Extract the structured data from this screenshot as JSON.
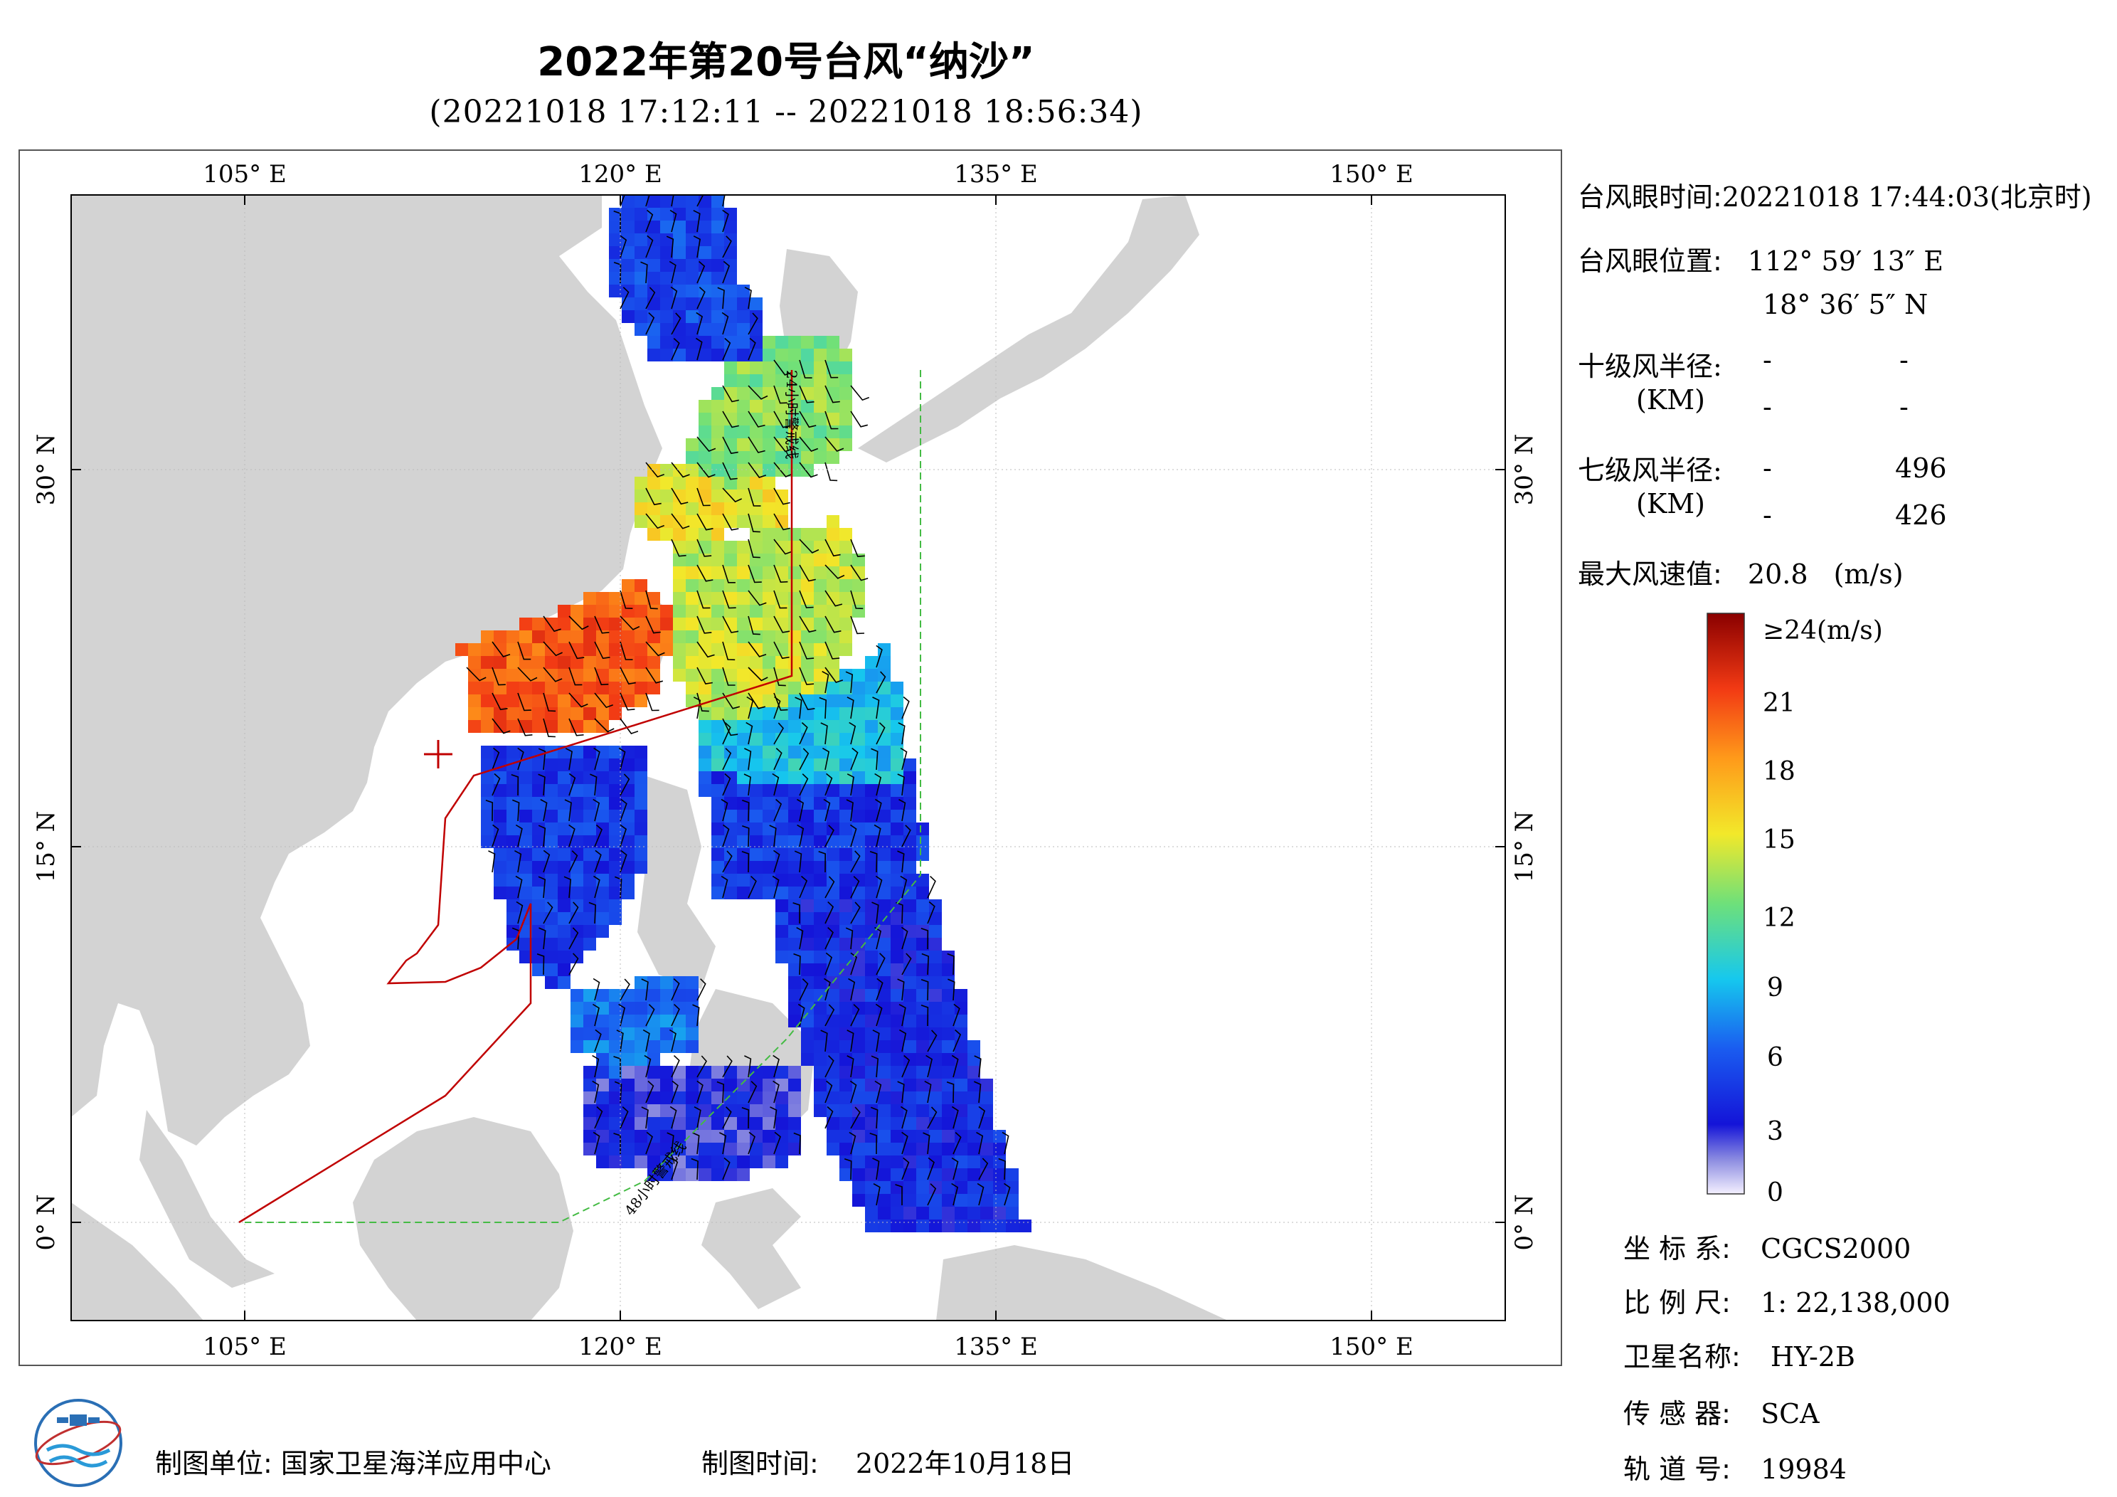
{
  "header": {
    "title": "2022年第20号台风“纳沙”",
    "time_range": "(20221018 17:12:11 -- 20221018 18:56:34)"
  },
  "map": {
    "lon_ticks": [
      "105° E",
      "120° E",
      "135° E",
      "150° E"
    ],
    "lat_ticks": [
      "30° N",
      "15° N",
      "0° N"
    ],
    "track_label_24h": "24小时警戒线",
    "track_label_48h": "48小时警戒线",
    "colors": {
      "land": "#d3d3d3",
      "sea": "#ffffff",
      "warning_line": "#c00000",
      "line_48h": "#33aa33"
    }
  },
  "info": {
    "eye_time_label": "台风眼时间:",
    "eye_time_value": "20221018 17:44:03(北京时)",
    "eye_pos_label": "台风眼位置:",
    "eye_lon": "112° 59′ 13″ E",
    "eye_lat": "18° 36′ 5″ N",
    "r10_label": "十级风半径:",
    "r10_unit": "(KM)",
    "r10_values": [
      "-",
      "-",
      "-",
      "-"
    ],
    "r7_label": "七级风半径:",
    "r7_unit": "(KM)",
    "r7_values": [
      "-",
      "496",
      "-",
      "426"
    ],
    "max_wind_label": "最大风速值:",
    "max_wind_value": "20.8",
    "max_wind_unit": "(m/s)"
  },
  "legend": {
    "labels": [
      "≥24(m/s)",
      "21",
      "18",
      "15",
      "12",
      "9",
      "6",
      "3",
      "0"
    ],
    "range": [
      0,
      24
    ]
  },
  "meta": {
    "crs_label": "坐 标 系:",
    "crs_value": "CGCS2000",
    "scale_label": "比 例 尺:",
    "scale_value": "1: 22,138,000",
    "satellite_label": "卫星名称:",
    "satellite_value": "HY-2B",
    "sensor_label": "传 感 器:",
    "sensor_value": "SCA",
    "orbit_label": "轨 道 号:",
    "orbit_value": "19984"
  },
  "footer": {
    "unit_label": "制图单位:",
    "unit_value": "国家卫星海洋应用中心",
    "date_label": "制图时间:",
    "date_value": "2022年10月18日"
  }
}
